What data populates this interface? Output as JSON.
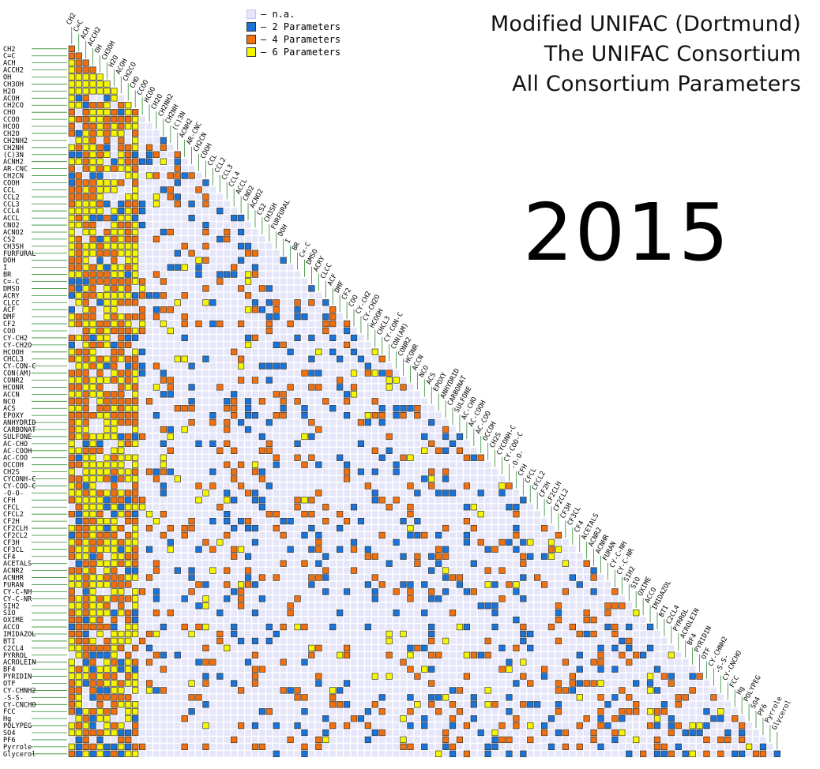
{
  "title": {
    "line1": "Modified UNIFAC (Dortmund)",
    "line2": "The UNIFAC Consortium",
    "line3": "All Consortium Parameters"
  },
  "year": "2015",
  "legend": [
    {
      "label": "– n.a.",
      "color": "#e6e6fa"
    },
    {
      "label": "– 2 Parameters",
      "color": "#1a73d9"
    },
    {
      "label": "– 4 Parameters",
      "color": "#f07010"
    },
    {
      "label": "– 6 Parameters",
      "color": "#f5f500"
    }
  ],
  "chart_data": {
    "type": "heatmap",
    "description_of_values": "lower-triangular group-interaction matrix; 0 = n.a., 2/4/6 = number of parameters",
    "groups": [
      "CH2",
      "C=C",
      "ACH",
      "ACCH2",
      "OH",
      "CH3OH",
      "H2O",
      "ACOH",
      "CH2CO",
      "CHO",
      "CCOO",
      "HCOO",
      "CH2O",
      "CH2NH2",
      "CH2NH",
      "(C)3N",
      "ACNH2",
      "AR-CNC",
      "CH2CN",
      "COOH",
      "CCL",
      "CCL2",
      "CCL3",
      "CCL4",
      "ACCL",
      "CNO2",
      "ACNO2",
      "CS2",
      "CH3SH",
      "FURFURAL",
      "DOH",
      "I",
      "BR",
      "C=-C",
      "DMSO",
      "ACRY",
      "CLCC",
      "ACF",
      "DMF",
      "CF2",
      "COO",
      "CY-CH2",
      "CY-CH2O",
      "HCOOH",
      "CHCL3",
      "CY-CON-C",
      "CON(AM)",
      "CONR2",
      "HCONR",
      "ACCN",
      "NCO",
      "ACS",
      "EPOXY",
      "ANHYDRID",
      "CARBONAT",
      "SULFONE",
      "AC-CHO",
      "AC-COOH",
      "AC-COO",
      "OCCOH",
      "CH2S",
      "CYCONH-C",
      "CY-COO-C",
      "-O-O-",
      "CFH",
      "CFCL",
      "CFCL2",
      "CF2H",
      "CF2CLH",
      "CF2CL2",
      "CF3H",
      "CF3CL",
      "CF4",
      "ACETALS",
      "ACNR2",
      "ACNHR",
      "FURAN",
      "CY-C-NH",
      "CY-C-NR",
      "SIH2",
      "SIO",
      "OXIME",
      "ACCO",
      "IMIDAZOL",
      "BTI",
      "C2CL4",
      "PYRROL",
      "ACROLEIN",
      "BF4",
      "PYRIDIN",
      "OTF",
      "CY-CHNH2",
      "-S-S-",
      "CY-CNCHO",
      "FCC",
      "Hg",
      "POLYPEG",
      "SO4",
      "PF6",
      "Pyrrole",
      "Glycerol"
    ],
    "values_approx_first_rows": [
      [
        4
      ],
      [
        4,
        4
      ],
      [
        6,
        4,
        4
      ],
      [
        6,
        4,
        4,
        4
      ],
      [
        6,
        6,
        6,
        6,
        6
      ],
      [
        6,
        6,
        6,
        6,
        6,
        6
      ],
      [
        6,
        6,
        6,
        6,
        6,
        6,
        6
      ]
    ],
    "fill_density": {
      "dense_columns": 10,
      "interior_probability": 0.28,
      "seed": 7
    },
    "xlabel": "",
    "ylabel": ""
  }
}
